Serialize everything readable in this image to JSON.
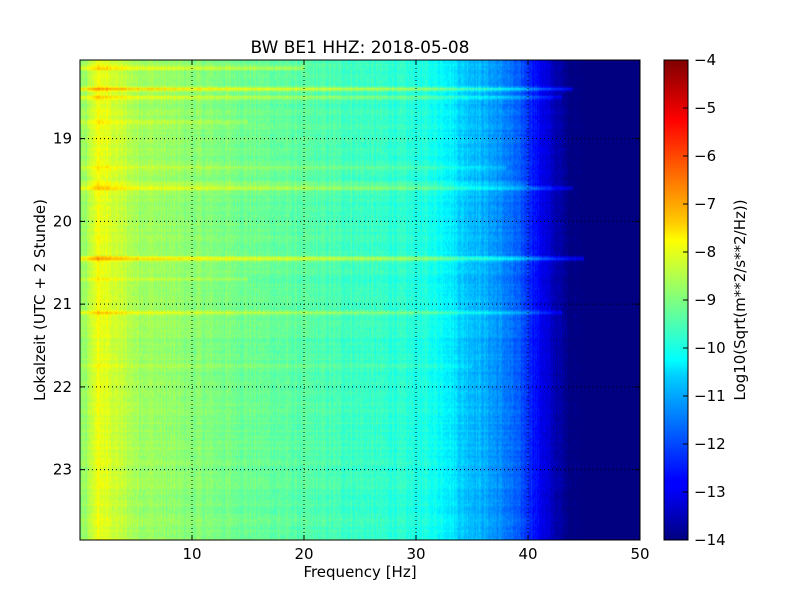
{
  "chart_data": {
    "type": "heatmap",
    "title": "BW BE1 HHZ: 2018-05-08",
    "xlabel": "Frequency [Hz]",
    "ylabel": "Lokalzeit (UTC + 2 Stunde)",
    "xlim": [
      0,
      50
    ],
    "ylim": [
      18.05,
      23.85
    ],
    "y_inverted": true,
    "x_ticks": [
      10,
      20,
      30,
      40,
      50
    ],
    "y_ticks": [
      19,
      20,
      21,
      22,
      23
    ],
    "grid": true,
    "colormap": "jet",
    "colorbar": {
      "label": "Log10(Sqrt(m**2/s**2/Hz))",
      "range": [
        -14,
        -4
      ],
      "ticks": [
        -4,
        -5,
        -6,
        -7,
        -8,
        -9,
        -10,
        -11,
        -12,
        -13,
        -14
      ]
    },
    "spectral_profile": {
      "frequency_hz": [
        0.5,
        1.5,
        3,
        5,
        8,
        12,
        16,
        20,
        24,
        28,
        31,
        33,
        34,
        36,
        38,
        40,
        41,
        42,
        43,
        44,
        46,
        50
      ],
      "log10_psd": [
        -8.8,
        -7.9,
        -8.2,
        -8.6,
        -8.8,
        -9.0,
        -9.2,
        -9.4,
        -9.6,
        -9.8,
        -10.0,
        -10.3,
        -10.7,
        -11.0,
        -11.5,
        -12.2,
        -12.8,
        -13.3,
        -13.7,
        -14.0,
        -14.0,
        -14.0
      ]
    },
    "bright_bands": [
      {
        "time": 18.15,
        "delta": 0.9,
        "fmax": 20
      },
      {
        "time": 18.4,
        "delta": 1.2,
        "fmax": 44
      },
      {
        "time": 18.5,
        "delta": 0.8,
        "fmax": 43
      },
      {
        "time": 18.8,
        "delta": 0.6,
        "fmax": 15
      },
      {
        "time": 19.35,
        "delta": 0.6,
        "fmax": 38
      },
      {
        "time": 19.55,
        "delta": 0.5,
        "fmax": 40
      },
      {
        "time": 19.6,
        "delta": 1.2,
        "fmax": 44
      },
      {
        "time": 20.45,
        "delta": 1.5,
        "fmax": 45
      },
      {
        "time": 20.7,
        "delta": 0.6,
        "fmax": 15
      },
      {
        "time": 21.1,
        "delta": 0.9,
        "fmax": 43
      },
      {
        "time": 21.75,
        "delta": 0.4,
        "fmax": 35
      }
    ]
  }
}
